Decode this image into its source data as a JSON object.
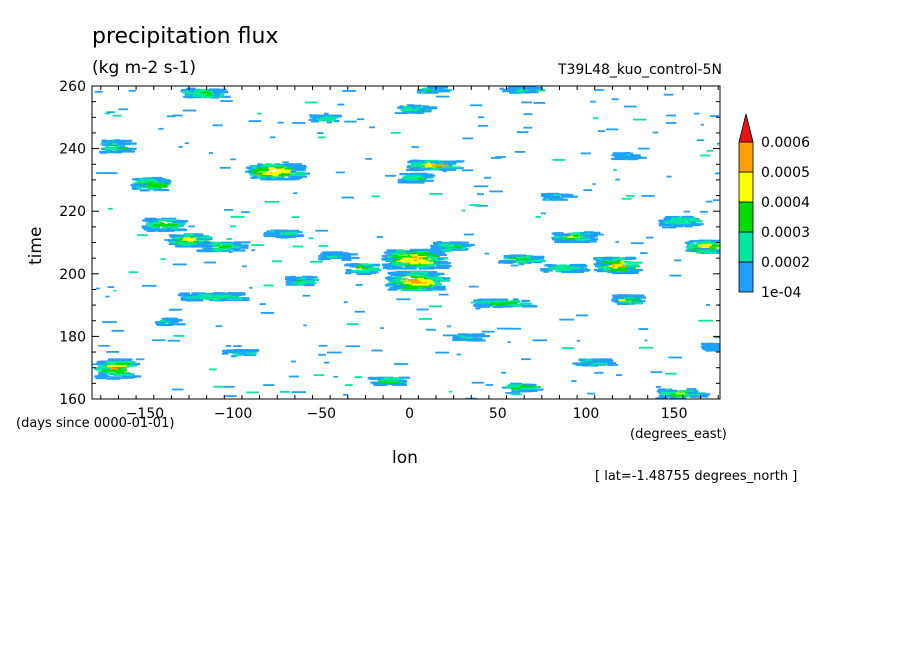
{
  "chart_data": {
    "type": "heatmap",
    "title": "precipitation flux",
    "units": "(kg m-2 s-1)",
    "run_label": "T39L48_kuo_control-5N",
    "xlabel": "lon",
    "x_units": "(degrees_east)",
    "ylabel": "time",
    "y_units": "(days since 0000-01-01)",
    "annotation": "[ lat=-1.48755 degrees_north ]",
    "xlim": [
      -180,
      176
    ],
    "ylim": [
      160,
      260
    ],
    "x_ticks": [
      -150,
      -100,
      -50,
      0,
      50,
      100,
      150
    ],
    "x_tick_labels": [
      "−150",
      "−100",
      "−50",
      "0",
      "50",
      "100",
      "150"
    ],
    "y_ticks": [
      160,
      180,
      200,
      220,
      240,
      260
    ],
    "y_tick_labels": [
      "160",
      "180",
      "200",
      "220",
      "240",
      "260"
    ],
    "colorbar": {
      "levels": [
        "1e-04",
        "0.0002",
        "0.0003",
        "0.0004",
        "0.0005",
        "0.0006"
      ],
      "colors": [
        "#1ea0ff",
        "#00e8a0",
        "#00dc00",
        "#ffff00",
        "#ffa000",
        "#e61414"
      ],
      "extend": "max"
    },
    "features": [
      {
        "lon": -150,
        "time": 229,
        "w": 18,
        "h": 2,
        "level": 3
      },
      {
        "lon": -143,
        "time": 216,
        "w": 18,
        "h": 2,
        "level": 3
      },
      {
        "lon": -128,
        "time": 211,
        "w": 18,
        "h": 2,
        "level": 4
      },
      {
        "lon": -110,
        "time": 209,
        "w": 22,
        "h": 1.5,
        "level": 3
      },
      {
        "lon": -115,
        "time": 193,
        "w": 35,
        "h": 1.2,
        "level": 2
      },
      {
        "lon": -80,
        "time": 233,
        "w": 28,
        "h": 2.5,
        "level": 5
      },
      {
        "lon": -170,
        "time": 170,
        "w": 18,
        "h": 3,
        "level": 4
      },
      {
        "lon": -170,
        "time": 241,
        "w": 12,
        "h": 2,
        "level": 2
      },
      {
        "lon": -120,
        "time": 258,
        "w": 20,
        "h": 1.5,
        "level": 2
      },
      {
        "lon": -65,
        "time": 198,
        "w": 12,
        "h": 1.5,
        "level": 2
      },
      {
        "lon": -75,
        "time": 213,
        "w": 16,
        "h": 1.2,
        "level": 1
      },
      {
        "lon": -45,
        "time": 206,
        "w": 14,
        "h": 1.2,
        "level": 1
      },
      {
        "lon": -30,
        "time": 202,
        "w": 15,
        "h": 1.5,
        "level": 3
      },
      {
        "lon": 0,
        "time": 198,
        "w": 28,
        "h": 3,
        "level": 5
      },
      {
        "lon": 0,
        "time": 205,
        "w": 32,
        "h": 3,
        "level": 5
      },
      {
        "lon": 20,
        "time": 209,
        "w": 18,
        "h": 1.5,
        "level": 2
      },
      {
        "lon": 10,
        "time": 235,
        "w": 25,
        "h": 1.5,
        "level": 4
      },
      {
        "lon": 0,
        "time": 231,
        "w": 14,
        "h": 1.5,
        "level": 2
      },
      {
        "lon": 0,
        "time": 253,
        "w": 15,
        "h": 1.2,
        "level": 2
      },
      {
        "lon": 10,
        "time": 259,
        "w": 12,
        "h": 1,
        "level": 2
      },
      {
        "lon": 60,
        "time": 205,
        "w": 20,
        "h": 1.2,
        "level": 3
      },
      {
        "lon": 50,
        "time": 191,
        "w": 28,
        "h": 1.2,
        "level": 3
      },
      {
        "lon": 85,
        "time": 202,
        "w": 22,
        "h": 1.2,
        "level": 2
      },
      {
        "lon": 90,
        "time": 212,
        "w": 20,
        "h": 1.5,
        "level": 3
      },
      {
        "lon": 115,
        "time": 203,
        "w": 22,
        "h": 2.5,
        "level": 4
      },
      {
        "lon": 120,
        "time": 192,
        "w": 12,
        "h": 1.5,
        "level": 3
      },
      {
        "lon": 150,
        "time": 217,
        "w": 18,
        "h": 1.5,
        "level": 2
      },
      {
        "lon": 165,
        "time": 209,
        "w": 18,
        "h": 2,
        "level": 4
      },
      {
        "lon": 150,
        "time": 162,
        "w": 22,
        "h": 1.5,
        "level": 3
      },
      {
        "lon": 60,
        "time": 164,
        "w": 15,
        "h": 1.2,
        "level": 3
      },
      {
        "lon": -15,
        "time": 166,
        "w": 18,
        "h": 1.2,
        "level": 2
      },
      {
        "lon": -100,
        "time": 175,
        "w": 14,
        "h": 1,
        "level": 1
      },
      {
        "lon": 100,
        "time": 172,
        "w": 18,
        "h": 1,
        "level": 1
      },
      {
        "lon": 120,
        "time": 238,
        "w": 12,
        "h": 1,
        "level": 1
      },
      {
        "lon": 170,
        "time": 177,
        "w": 10,
        "h": 1.2,
        "level": 1
      },
      {
        "lon": 60,
        "time": 259,
        "w": 18,
        "h": 1,
        "level": 1
      },
      {
        "lon": -140,
        "time": 185,
        "w": 10,
        "h": 1,
        "level": 1
      },
      {
        "lon": 30,
        "time": 180,
        "w": 12,
        "h": 1,
        "level": 1
      },
      {
        "lon": -50,
        "time": 250,
        "w": 15,
        "h": 1,
        "level": 1
      },
      {
        "lon": 80,
        "time": 225,
        "w": 12,
        "h": 1,
        "level": 1
      }
    ]
  }
}
